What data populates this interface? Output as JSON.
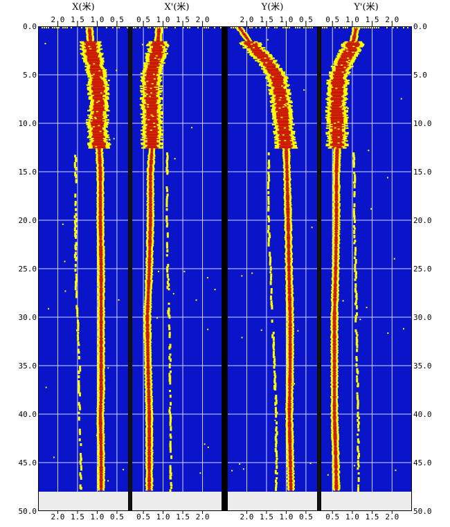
{
  "chart_data": {
    "type": "heatmap",
    "y_axis": {
      "range": [
        0.0,
        50.0
      ],
      "ticks": [
        "0.0",
        "5.0",
        "10.0",
        "15.0",
        "20.0",
        "25.0",
        "30.0",
        "35.0",
        "40.0",
        "45.0",
        "50.0"
      ],
      "data_ends_at": 48.0
    },
    "grid": true,
    "colors": {
      "background": "#0a14c8",
      "low": "#ffff00",
      "high": "#c81400",
      "empty": "#ececec",
      "grid": "#d8d8ff",
      "separator": "#000000"
    },
    "panels": [
      {
        "title": "X(米)",
        "direction": "reversed",
        "xlim": [
          2.5,
          0.2
        ],
        "x_ticks": [
          "2.0",
          "1.5",
          "1.0",
          "0.5"
        ],
        "tick_values": [
          2.0,
          1.5,
          1.0,
          0.5
        ],
        "trace_main": [
          [
            0.0,
            1.2
          ],
          [
            2.5,
            1.15
          ],
          [
            5.0,
            1.0
          ],
          [
            8.0,
            0.95
          ],
          [
            10.0,
            1.0
          ],
          [
            12.5,
            0.95
          ],
          [
            15.0,
            0.92
          ],
          [
            20.0,
            0.92
          ],
          [
            25.0,
            0.9
          ],
          [
            30.0,
            0.9
          ],
          [
            35.0,
            0.9
          ],
          [
            38.0,
            0.9
          ],
          [
            40.0,
            0.92
          ],
          [
            44.0,
            0.9
          ],
          [
            47.8,
            0.9
          ]
        ],
        "trace_secondary": [
          [
            13.0,
            1.55
          ],
          [
            20.0,
            1.55
          ],
          [
            25.0,
            1.55
          ],
          [
            30.0,
            1.5
          ],
          [
            35.0,
            1.45
          ],
          [
            40.0,
            1.45
          ],
          [
            44.0,
            1.42
          ],
          [
            47.8,
            1.42
          ]
        ]
      },
      {
        "title": "X'(米)",
        "direction": "normal",
        "xlim": [
          0.2,
          2.5
        ],
        "x_ticks": [
          "0.5",
          "1.0",
          "1.5",
          "2.0"
        ],
        "tick_values": [
          0.5,
          1.0,
          1.5,
          2.0
        ],
        "trace_main": [
          [
            0.0,
            0.9
          ],
          [
            2.5,
            0.85
          ],
          [
            5.0,
            0.7
          ],
          [
            8.0,
            0.7
          ],
          [
            10.0,
            0.72
          ],
          [
            12.5,
            0.72
          ],
          [
            15.0,
            0.68
          ],
          [
            20.0,
            0.68
          ],
          [
            25.0,
            0.65
          ],
          [
            30.0,
            0.6
          ],
          [
            35.0,
            0.62
          ],
          [
            40.0,
            0.65
          ],
          [
            44.0,
            0.65
          ],
          [
            47.8,
            0.65
          ]
        ],
        "trace_secondary": [
          [
            13.0,
            1.1
          ],
          [
            20.0,
            1.1
          ],
          [
            25.0,
            1.12
          ],
          [
            30.0,
            1.15
          ],
          [
            35.0,
            1.18
          ],
          [
            40.0,
            1.18
          ],
          [
            44.0,
            1.2
          ],
          [
            47.8,
            1.2
          ]
        ]
      },
      {
        "title": "Y(米)",
        "direction": "reversed",
        "xlim": [
          2.5,
          0.2
        ],
        "x_ticks": [
          "2.0",
          "1.5",
          "1.0",
          "0.5"
        ],
        "tick_values": [
          2.0,
          1.5,
          1.0,
          0.5
        ],
        "trace_main": [
          [
            0.0,
            2.2
          ],
          [
            2.0,
            1.85
          ],
          [
            3.5,
            1.5
          ],
          [
            5.0,
            1.25
          ],
          [
            7.0,
            1.15
          ],
          [
            9.0,
            1.1
          ],
          [
            11.0,
            1.05
          ],
          [
            12.5,
            1.0
          ],
          [
            15.0,
            0.98
          ],
          [
            20.0,
            0.95
          ],
          [
            25.0,
            0.93
          ],
          [
            30.0,
            0.9
          ],
          [
            35.0,
            0.9
          ],
          [
            40.0,
            0.92
          ],
          [
            44.0,
            0.9
          ],
          [
            47.8,
            0.88
          ]
        ],
        "trace_secondary": [
          [
            13.0,
            1.45
          ],
          [
            20.0,
            1.45
          ],
          [
            25.0,
            1.4
          ],
          [
            30.0,
            1.35
          ],
          [
            35.0,
            1.3
          ],
          [
            40.0,
            1.25
          ],
          [
            44.0,
            1.25
          ],
          [
            47.8,
            1.25
          ]
        ]
      },
      {
        "title": "Y'(米)",
        "direction": "normal",
        "xlim": [
          0.2,
          2.5
        ],
        "x_ticks": [
          "0.5",
          "1.0",
          "1.5",
          "2.0"
        ],
        "tick_values": [
          0.5,
          1.0,
          1.5,
          2.0
        ],
        "trace_main": [
          [
            0.0,
            1.1
          ],
          [
            2.0,
            1.0
          ],
          [
            3.5,
            0.8
          ],
          [
            5.0,
            0.65
          ],
          [
            8.0,
            0.6
          ],
          [
            10.0,
            0.62
          ],
          [
            12.5,
            0.62
          ],
          [
            15.0,
            0.6
          ],
          [
            20.0,
            0.6
          ],
          [
            25.0,
            0.58
          ],
          [
            30.0,
            0.55
          ],
          [
            35.0,
            0.55
          ],
          [
            40.0,
            0.55
          ],
          [
            44.0,
            0.58
          ],
          [
            47.8,
            0.6
          ]
        ],
        "trace_secondary": [
          [
            13.0,
            1.05
          ],
          [
            20.0,
            1.05
          ],
          [
            25.0,
            1.08
          ],
          [
            30.0,
            1.1
          ],
          [
            35.0,
            1.12
          ],
          [
            40.0,
            1.15
          ],
          [
            44.0,
            1.15
          ],
          [
            47.8,
            1.15
          ]
        ]
      }
    ]
  }
}
